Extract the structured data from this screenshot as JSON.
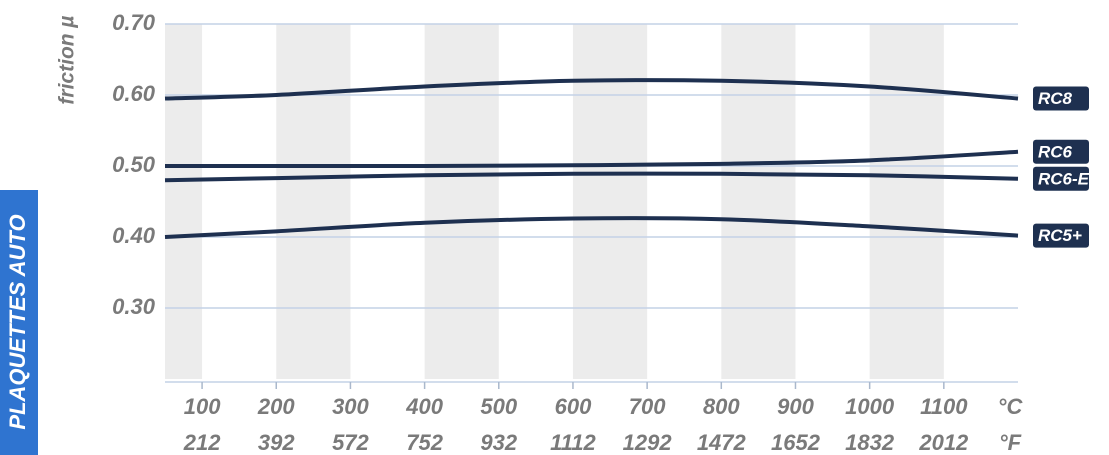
{
  "chart_data": {
    "type": "line",
    "y_label": "friction µ",
    "side_label": "PLAQUETTES AUTO",
    "x": [
      50,
      200,
      400,
      600,
      800,
      1000,
      1200
    ],
    "xlim": [
      50,
      1200
    ],
    "xticks": [
      100,
      200,
      300,
      400,
      500,
      600,
      700,
      800,
      900,
      1000,
      1100
    ],
    "xticks_secondary": [
      212,
      392,
      572,
      752,
      932,
      1112,
      1292,
      1472,
      1652,
      1832,
      2012
    ],
    "x_unit": "°C",
    "x_unit_secondary": "°F",
    "ylim": [
      0.2,
      0.7
    ],
    "yticks": [
      {
        "value": 0.3,
        "label": "0.30"
      },
      {
        "value": 0.4,
        "label": "0.40"
      },
      {
        "value": 0.5,
        "label": "0.50"
      },
      {
        "value": 0.6,
        "label": "0.60"
      },
      {
        "value": 0.7,
        "label": "0.70"
      }
    ],
    "grid": true,
    "series": [
      {
        "name": "RC8",
        "color": "#1e3050",
        "values": [
          0.595,
          0.6,
          0.612,
          0.62,
          0.62,
          0.612,
          0.595
        ]
      },
      {
        "name": "RC6",
        "color": "#1e3050",
        "values": [
          0.5,
          0.5,
          0.5,
          0.501,
          0.503,
          0.508,
          0.52
        ]
      },
      {
        "name": "RC6-E",
        "color": "#1e3050",
        "values": [
          0.48,
          0.483,
          0.487,
          0.489,
          0.489,
          0.487,
          0.482
        ]
      },
      {
        "name": "RC5+",
        "color": "#1e3050",
        "values": [
          0.4,
          0.408,
          0.42,
          0.426,
          0.425,
          0.415,
          0.402
        ]
      }
    ]
  }
}
